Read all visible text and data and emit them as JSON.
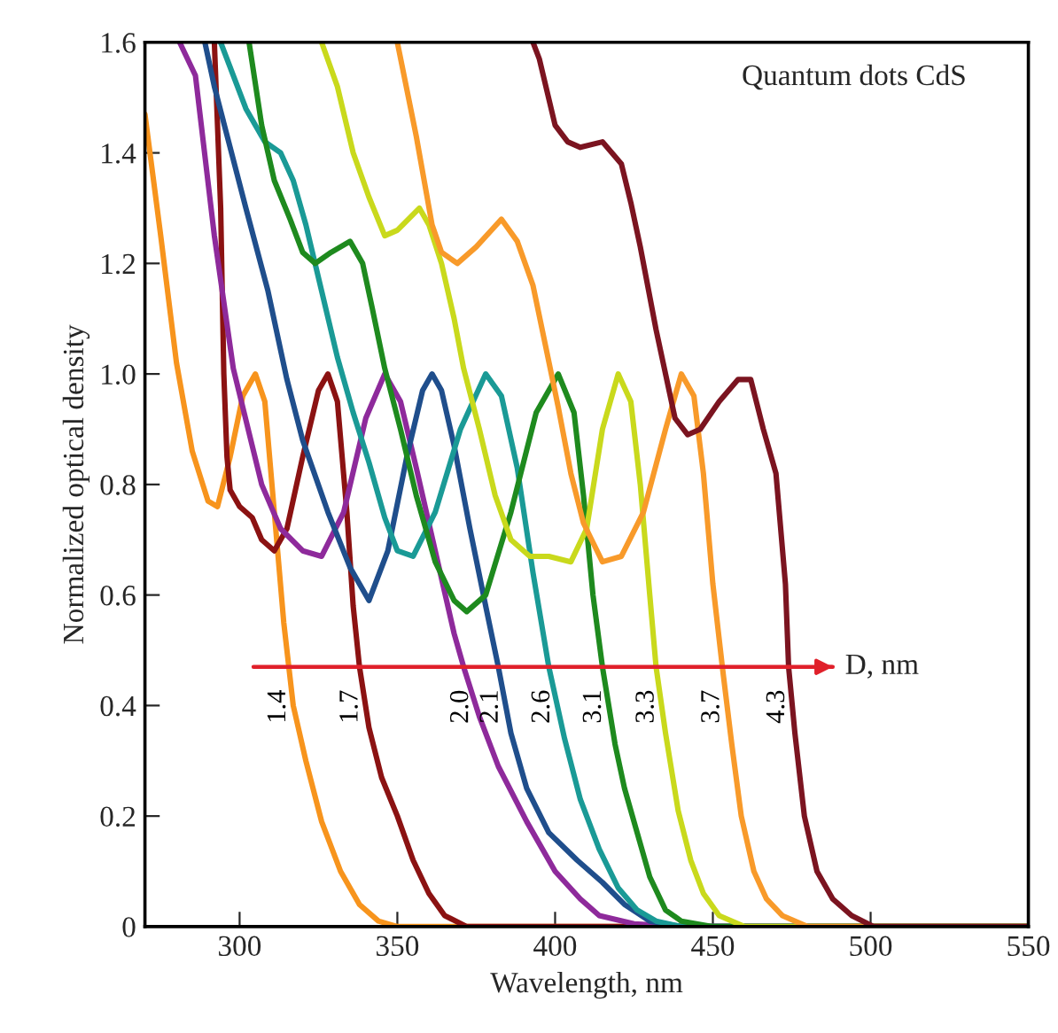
{
  "chart_data": {
    "type": "line",
    "title": "Quantum dots CdS",
    "xlabel": "Wavelength, nm",
    "ylabel": "Normalized optical density",
    "xlim": [
      270,
      550
    ],
    "ylim": [
      0,
      1.6
    ],
    "xticks": [
      300,
      350,
      400,
      450,
      500,
      550
    ],
    "yticks": [
      0,
      {
        "value": 0.2,
        "label": "0.2"
      },
      {
        "value": 0.4,
        "label": "0.4"
      },
      {
        "value": 0.6,
        "label": "0.6"
      },
      {
        "value": 0.8,
        "label": "0.8"
      },
      {
        "value": 1.0,
        "label": "1.0"
      },
      {
        "value": 1.2,
        "label": "1.2"
      },
      {
        "value": 1.4,
        "label": "1.4"
      },
      {
        "value": 1.6,
        "label": "1.6"
      }
    ],
    "grid": false,
    "legend": false,
    "marker": "none",
    "line_style": "solid",
    "ref_lines": [
      {
        "axis": "y",
        "value": 0.47,
        "label": "D, nm",
        "color": "#e0202a"
      }
    ],
    "series": [
      {
        "name": "1.4",
        "color": "#f7941d",
        "x": [
          270,
          275,
          280,
          285,
          290,
          293,
          297,
          301,
          305,
          308,
          311,
          314,
          317,
          321,
          326,
          332,
          338,
          344,
          350,
          550
        ],
        "values": [
          1.47,
          1.25,
          1.02,
          0.86,
          0.77,
          0.76,
          0.85,
          0.96,
          1.0,
          0.95,
          0.75,
          0.55,
          0.4,
          0.3,
          0.19,
          0.1,
          0.04,
          0.01,
          0,
          0
        ]
      },
      {
        "name": "1.7",
        "color": "#8b1212",
        "x": [
          292,
          294,
          295,
          296,
          297,
          300,
          304,
          307,
          311,
          315,
          320,
          325,
          328,
          331,
          334,
          336,
          338,
          341,
          345,
          350,
          355,
          360,
          365,
          372,
          550
        ],
        "values": [
          1.6,
          1.3,
          1.0,
          0.85,
          0.79,
          0.76,
          0.74,
          0.7,
          0.68,
          0.72,
          0.85,
          0.97,
          1.0,
          0.95,
          0.75,
          0.58,
          0.47,
          0.36,
          0.27,
          0.2,
          0.12,
          0.06,
          0.02,
          0,
          0
        ]
      },
      {
        "name": "2.0",
        "color": "#8e2a9b",
        "x": [
          281,
          286,
          292,
          298,
          307,
          313,
          320,
          326,
          333,
          340,
          346,
          351,
          356,
          362,
          368,
          371,
          376,
          382,
          391,
          400,
          408,
          414,
          425,
          440,
          550
        ],
        "values": [
          1.6,
          1.54,
          1.25,
          1.01,
          0.8,
          0.72,
          0.68,
          0.67,
          0.75,
          0.92,
          1.0,
          0.95,
          0.83,
          0.68,
          0.53,
          0.47,
          0.38,
          0.29,
          0.19,
          0.1,
          0.05,
          0.02,
          0.005,
          0,
          0
        ]
      },
      {
        "name": "2.1",
        "color": "#1f4e8c",
        "x": [
          289,
          292,
          302,
          309,
          315,
          320,
          328,
          335,
          341,
          347,
          353,
          358,
          361,
          364,
          368,
          373,
          378,
          382,
          386,
          391,
          398,
          407,
          415,
          422,
          430,
          440,
          550
        ],
        "values": [
          1.6,
          1.52,
          1.3,
          1.15,
          0.99,
          0.88,
          0.75,
          0.65,
          0.59,
          0.68,
          0.85,
          0.97,
          1.0,
          0.97,
          0.87,
          0.72,
          0.58,
          0.47,
          0.35,
          0.25,
          0.17,
          0.12,
          0.08,
          0.04,
          0.01,
          0,
          0
        ]
      },
      {
        "name": "2.6",
        "color": "#1a9a96",
        "x": [
          294,
          302,
          308,
          313,
          317,
          321,
          326,
          331,
          336,
          341,
          346,
          350,
          355,
          362,
          370,
          378,
          383,
          388,
          393,
          398,
          403,
          408,
          414,
          420,
          426,
          432,
          440,
          550
        ],
        "values": [
          1.6,
          1.48,
          1.42,
          1.4,
          1.35,
          1.27,
          1.15,
          1.03,
          0.93,
          0.84,
          0.74,
          0.68,
          0.67,
          0.75,
          0.9,
          1.0,
          0.96,
          0.83,
          0.64,
          0.47,
          0.34,
          0.23,
          0.14,
          0.07,
          0.03,
          0.01,
          0,
          0
        ]
      },
      {
        "name": "3.1",
        "color": "#1e8a1e",
        "x": [
          303,
          307,
          311,
          316,
          320,
          324,
          329,
          335,
          339,
          342,
          346,
          351,
          356,
          362,
          368,
          372,
          378,
          386,
          394,
          401,
          406,
          409,
          412,
          415,
          419,
          422,
          426,
          430,
          435,
          440,
          450,
          550
        ],
        "values": [
          1.6,
          1.45,
          1.35,
          1.28,
          1.22,
          1.2,
          1.22,
          1.24,
          1.2,
          1.12,
          1.01,
          0.9,
          0.78,
          0.66,
          0.59,
          0.57,
          0.6,
          0.75,
          0.93,
          1.0,
          0.93,
          0.78,
          0.6,
          0.47,
          0.33,
          0.25,
          0.17,
          0.09,
          0.03,
          0.01,
          0,
          0
        ]
      },
      {
        "name": "3.3",
        "color": "#c9d91c",
        "x": [
          326,
          331,
          336,
          341,
          346,
          350,
          357,
          360,
          364,
          368,
          371,
          376,
          381,
          386,
          392,
          398,
          405,
          410,
          415,
          420,
          424,
          427,
          430,
          432,
          435,
          439,
          443,
          447,
          452,
          460,
          550
        ],
        "values": [
          1.6,
          1.52,
          1.4,
          1.32,
          1.25,
          1.26,
          1.3,
          1.27,
          1.2,
          1.1,
          1.01,
          0.9,
          0.78,
          0.7,
          0.67,
          0.67,
          0.66,
          0.72,
          0.9,
          1.0,
          0.95,
          0.8,
          0.6,
          0.47,
          0.35,
          0.21,
          0.12,
          0.06,
          0.02,
          0,
          0
        ]
      },
      {
        "name": "3.7",
        "color": "#f89a2a",
        "x": [
          350,
          356,
          361,
          364,
          369,
          375,
          383,
          388,
          393,
          397,
          401,
          405,
          409,
          415,
          421,
          428,
          435,
          440,
          444,
          447,
          450,
          453,
          456,
          459,
          463,
          467,
          472,
          480,
          550
        ],
        "values": [
          1.6,
          1.43,
          1.27,
          1.22,
          1.2,
          1.23,
          1.28,
          1.24,
          1.16,
          1.05,
          0.94,
          0.82,
          0.73,
          0.66,
          0.67,
          0.75,
          0.9,
          1.0,
          0.96,
          0.82,
          0.62,
          0.47,
          0.33,
          0.2,
          0.1,
          0.05,
          0.02,
          0,
          0
        ]
      },
      {
        "name": "4.3",
        "color": "#7b1420",
        "x": [
          393,
          395,
          400,
          404,
          408,
          415,
          418,
          421,
          424,
          427,
          432,
          438,
          442,
          446,
          452,
          458,
          462,
          466,
          470,
          473,
          474,
          476,
          479,
          483,
          488,
          494,
          501,
          550
        ],
        "values": [
          1.6,
          1.57,
          1.45,
          1.42,
          1.41,
          1.42,
          1.4,
          1.38,
          1.31,
          1.23,
          1.08,
          0.92,
          0.89,
          0.9,
          0.95,
          0.99,
          0.99,
          0.9,
          0.82,
          0.62,
          0.47,
          0.35,
          0.2,
          0.1,
          0.05,
          0.02,
          0,
          0
        ]
      }
    ]
  }
}
